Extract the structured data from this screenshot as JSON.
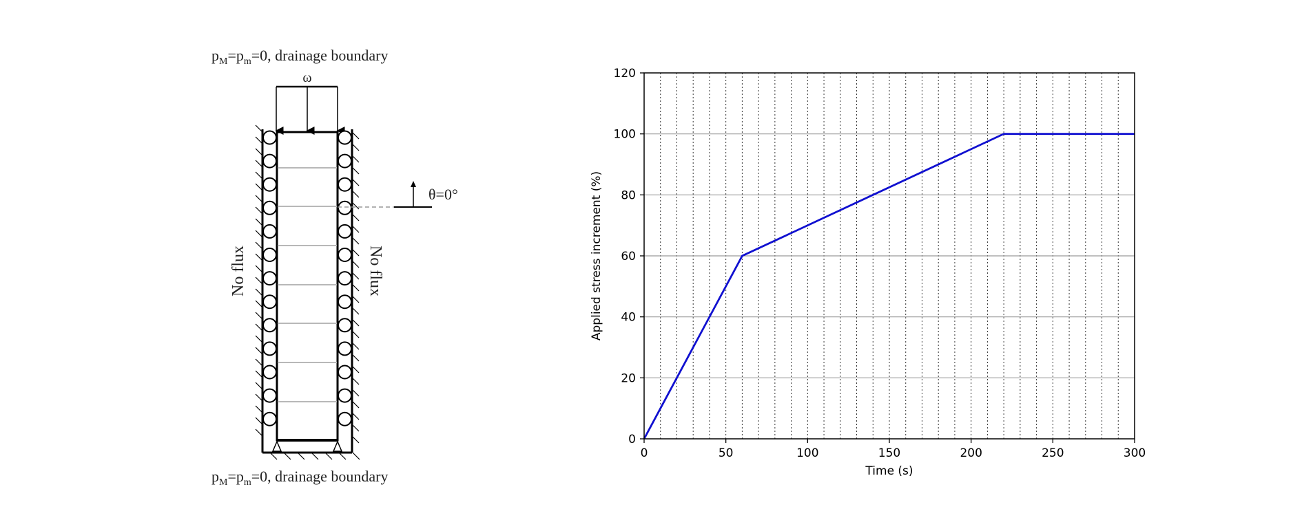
{
  "diagram": {
    "top_caption": {
      "p": "p",
      "sub_M": "M",
      "eq": "=p",
      "sub_m": "m",
      "rest": "=0, drainage boundary"
    },
    "bottom_caption": {
      "p": "p",
      "sub_M": "M",
      "eq": "=p",
      "sub_m": "m",
      "rest": "=0, drainage boundary"
    },
    "load_symbol": "ω",
    "left_label": "No flux",
    "right_label": "No flux",
    "angle_label": "θ=0°"
  },
  "chart_data": {
    "type": "line",
    "xlabel": "Time (s)",
    "ylabel": "Applied stress increment (%)",
    "xlim": [
      0,
      300
    ],
    "ylim": [
      0,
      120
    ],
    "xticks": [
      0,
      50,
      100,
      150,
      200,
      250,
      300
    ],
    "yticks": [
      0,
      20,
      40,
      60,
      80,
      100,
      120
    ],
    "x_minor_grid_step": 10,
    "grid": true,
    "series": [
      {
        "color": "#1010d0",
        "x": [
          0,
          60,
          220,
          300
        ],
        "y": [
          0,
          60,
          100,
          100
        ]
      }
    ]
  }
}
